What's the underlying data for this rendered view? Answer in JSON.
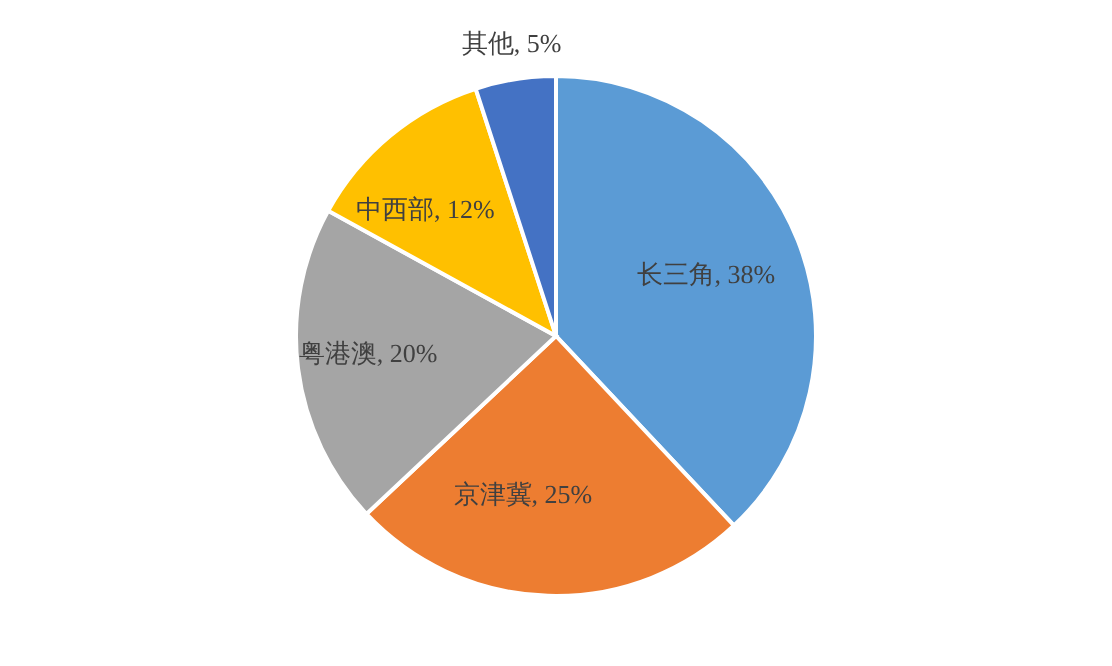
{
  "chart_data": {
    "type": "pie",
    "categories": [
      "长三角",
      "京津冀",
      "粤港澳",
      "中西部",
      "其他"
    ],
    "values": [
      38,
      25,
      20,
      12,
      5
    ],
    "value_labels": [
      "38%",
      "25%",
      "20%",
      "12%",
      "5%"
    ],
    "colors": [
      "#5b9bd5",
      "#ed7d31",
      "#a5a5a5",
      "#ffc000",
      "#4472c4"
    ]
  }
}
